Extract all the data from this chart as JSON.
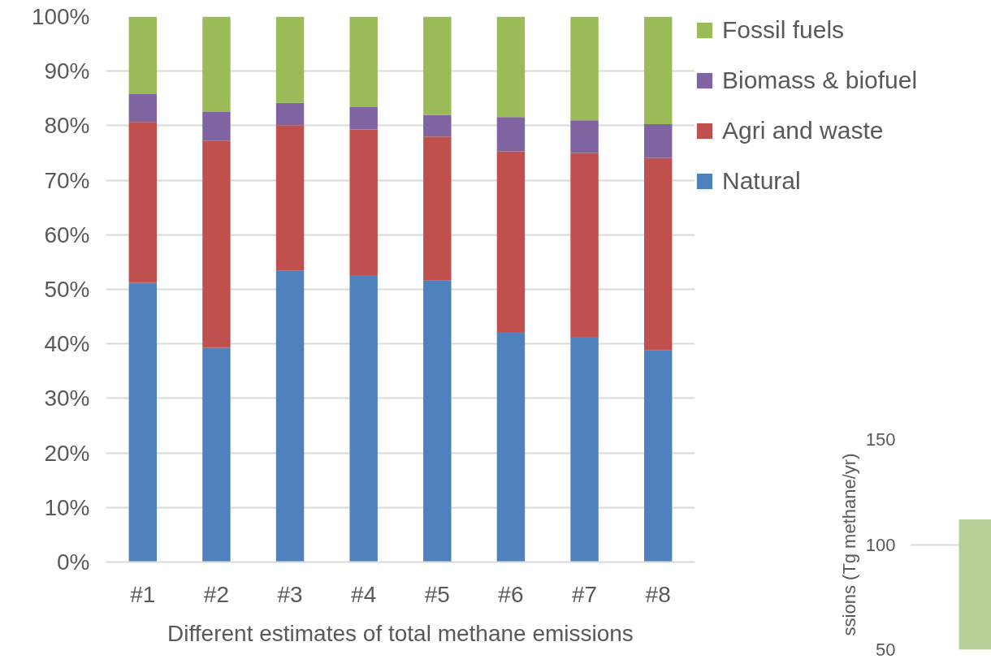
{
  "chart_data": [
    {
      "type": "bar",
      "stacked": true,
      "xlabel": "Different estimates of total methane emissions",
      "categories": [
        "#1",
        "#2",
        "#3",
        "#4",
        "#5",
        "#6",
        "#7",
        "#8"
      ],
      "series": [
        {
          "name": "Natural",
          "color": "#4f81bd",
          "values": [
            51.2,
            39.3,
            53.4,
            52.6,
            51.6,
            42.2,
            41.3,
            38.8
          ]
        },
        {
          "name": "Agri and waste",
          "color": "#c0504d",
          "values": [
            29.5,
            37.9,
            26.7,
            26.7,
            26.4,
            33.1,
            33.7,
            35.3
          ]
        },
        {
          "name": "Biomass & biofuel",
          "color": "#8064a2",
          "values": [
            5.1,
            5.3,
            4.1,
            4.1,
            4.0,
            6.3,
            6.0,
            6.2
          ]
        },
        {
          "name": "Fossil fuels",
          "color": "#9bbb59",
          "values": [
            14.2,
            17.5,
            15.8,
            16.6,
            18.0,
            18.4,
            19.0,
            19.7
          ]
        }
      ],
      "ylim": [
        0,
        100
      ],
      "yticks": [
        {
          "value": 0,
          "label": "0%"
        },
        {
          "value": 10,
          "label": "10%"
        },
        {
          "value": 20,
          "label": "20%"
        },
        {
          "value": 30,
          "label": "30%"
        },
        {
          "value": 40,
          "label": "40%"
        },
        {
          "value": 50,
          "label": "50%"
        },
        {
          "value": 60,
          "label": "60%"
        },
        {
          "value": 70,
          "label": "70%"
        },
        {
          "value": 80,
          "label": "80%"
        },
        {
          "value": 90,
          "label": "90%"
        },
        {
          "value": 100,
          "label": "100%"
        }
      ],
      "grid": "y",
      "legend": "right"
    },
    {
      "type": "bar",
      "ylabel": "ssions (Tg methane/yr)",
      "categories": [
        null
      ],
      "series": [
        {
          "color": "#b9cf98",
          "values": [
            112
          ]
        }
      ],
      "ylim": [
        50,
        150
      ],
      "yticks": [
        50,
        100,
        150
      ],
      "grid": "y"
    }
  ]
}
